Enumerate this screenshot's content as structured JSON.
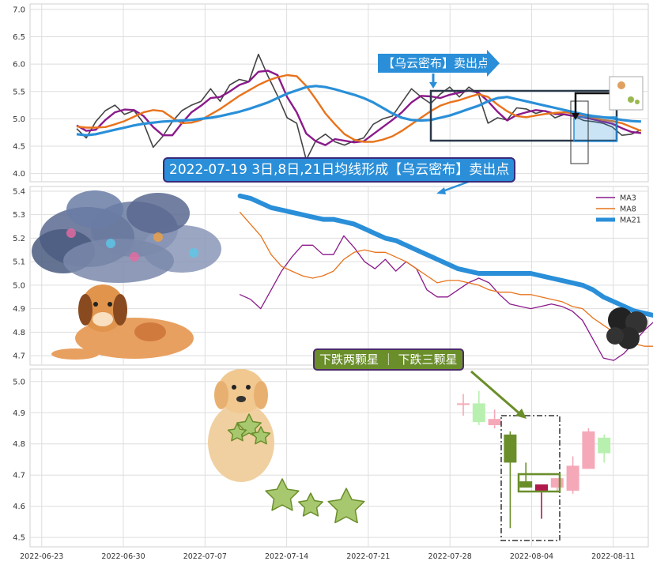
{
  "chart_data": {
    "type": "line",
    "x_tick_labels": [
      "2022-06-23",
      "2022-06-30",
      "2022-07-07",
      "2022-07-14",
      "2022-07-21",
      "2022-07-28",
      "2022-08-04",
      "2022-08-11"
    ],
    "panels": [
      {
        "id": "top",
        "type": "line",
        "ylim": [
          3.85,
          7.1
        ],
        "y_ticks": [
          "4.0",
          "4.5",
          "5.0",
          "5.5",
          "6.0",
          "6.5",
          "7.0"
        ],
        "x_start": "2022-06-26",
        "series": [
          {
            "name": "close",
            "color": "#444444",
            "values": [
              4.82,
              4.65,
              4.95,
              5.15,
              5.25,
              5.08,
              5.15,
              4.92,
              4.48,
              4.68,
              4.95,
              5.15,
              5.25,
              5.32,
              5.55,
              5.32,
              5.62,
              5.72,
              5.68,
              6.18,
              5.78,
              5.42,
              5.02,
              4.92,
              4.25,
              4.6,
              4.72,
              4.58,
              4.52,
              4.6,
              4.65,
              4.9,
              5.0,
              5.05,
              5.3,
              5.55,
              5.4,
              5.28,
              5.45,
              5.58,
              5.4,
              5.58,
              5.45,
              4.92,
              5.02,
              4.98,
              5.2,
              5.18,
              5.1,
              5.15,
              5.02,
              5.08,
              5.05,
              4.97,
              4.95,
              4.92,
              4.85,
              4.7,
              4.72,
              4.8
            ]
          },
          {
            "name": "MA3",
            "color": "#8b1a8b",
            "values": [
              4.88,
              4.78,
              4.8,
              4.98,
              5.12,
              5.17,
              5.16,
              5.05,
              4.85,
              4.7,
              4.7,
              4.92,
              5.12,
              5.24,
              5.38,
              5.4,
              5.5,
              5.62,
              5.68,
              5.86,
              5.88,
              5.8,
              5.4,
              5.12,
              4.73,
              4.59,
              4.52,
              4.63,
              4.6,
              4.57,
              4.59,
              4.72,
              4.85,
              4.98,
              5.12,
              5.3,
              5.42,
              5.41,
              5.38,
              5.44,
              5.48,
              5.52,
              5.48,
              5.32,
              5.13,
              4.97,
              5.07,
              5.12,
              5.16,
              5.14,
              5.09,
              5.08,
              5.05,
              5.03,
              4.99,
              4.95,
              4.91,
              4.83,
              4.76,
              4.74
            ]
          },
          {
            "name": "MA8",
            "color": "#e8731c",
            "values": [
              4.86,
              4.84,
              4.84,
              4.85,
              4.9,
              4.96,
              5.04,
              5.12,
              5.16,
              5.14,
              5.02,
              4.92,
              4.93,
              4.98,
              5.08,
              5.18,
              5.3,
              5.42,
              5.52,
              5.62,
              5.7,
              5.76,
              5.8,
              5.78,
              5.6,
              5.36,
              5.1,
              4.9,
              4.72,
              4.62,
              4.58,
              4.58,
              4.62,
              4.68,
              4.78,
              4.9,
              5.02,
              5.14,
              5.24,
              5.3,
              5.34,
              5.4,
              5.45,
              5.4,
              5.26,
              5.14,
              5.05,
              5.03,
              5.06,
              5.09,
              5.11,
              5.12,
              5.1,
              5.06,
              5.02,
              4.98,
              4.96,
              4.92,
              4.85,
              4.78
            ]
          },
          {
            "name": "MA21",
            "color": "#2a8fd8",
            "values": [
              4.72,
              4.7,
              4.72,
              4.76,
              4.8,
              4.84,
              4.88,
              4.91,
              4.93,
              4.95,
              4.96,
              4.97,
              4.98,
              5.0,
              5.02,
              5.05,
              5.09,
              5.13,
              5.18,
              5.24,
              5.3,
              5.38,
              5.46,
              5.52,
              5.58,
              5.6,
              5.58,
              5.54,
              5.49,
              5.44,
              5.38,
              5.3,
              5.2,
              5.1,
              5.02,
              4.98,
              4.97,
              4.98,
              5.02,
              5.06,
              5.12,
              5.18,
              5.24,
              5.32,
              5.38,
              5.4,
              5.36,
              5.32,
              5.28,
              5.24,
              5.2,
              5.16,
              5.12,
              5.08,
              5.05,
              5.03,
              5.01,
              4.98,
              4.96,
              4.95
            ]
          }
        ]
      },
      {
        "id": "middle",
        "type": "line",
        "ylim": [
          4.66,
          5.42
        ],
        "y_ticks": [
          "4.7",
          "4.8",
          "4.9",
          "5.0",
          "5.1",
          "5.2",
          "5.3",
          "5.4"
        ],
        "x_start": "2022-07-10",
        "legend": [
          "MA3",
          "MA8",
          "MA21"
        ],
        "legend_position": "upper-right",
        "series": [
          {
            "name": "MA3",
            "color": "#8b1a8b",
            "values": [
              4.96,
              4.94,
              4.9,
              4.98,
              5.06,
              5.12,
              5.17,
              5.17,
              5.13,
              5.13,
              5.21,
              5.16,
              5.1,
              5.07,
              5.11,
              5.06,
              5.1,
              5.07,
              4.98,
              4.95,
              4.95,
              4.98,
              5.01,
              5.03,
              5.01,
              4.96,
              4.92,
              4.91,
              4.9,
              4.91,
              4.92,
              4.91,
              4.89,
              4.85,
              4.77,
              4.69,
              4.68,
              4.71,
              4.76,
              4.81,
              4.85
            ]
          },
          {
            "name": "MA8",
            "color": "#e8731c",
            "values": [
              5.31,
              5.26,
              5.21,
              5.13,
              5.08,
              5.06,
              5.04,
              5.03,
              5.04,
              5.06,
              5.11,
              5.14,
              5.15,
              5.14,
              5.14,
              5.12,
              5.1,
              5.07,
              5.04,
              5.01,
              5.02,
              5.02,
              5.01,
              5.0,
              4.98,
              4.97,
              4.97,
              4.96,
              4.96,
              4.95,
              4.94,
              4.93,
              4.91,
              4.9,
              4.86,
              4.83,
              4.8,
              4.77,
              4.75,
              4.74,
              4.74
            ]
          },
          {
            "name": "MA21",
            "color": "#2a8fd8",
            "values": [
              5.38,
              5.37,
              5.35,
              5.33,
              5.32,
              5.31,
              5.3,
              5.29,
              5.28,
              5.28,
              5.27,
              5.26,
              5.24,
              5.22,
              5.2,
              5.19,
              5.17,
              5.15,
              5.13,
              5.11,
              5.09,
              5.07,
              5.06,
              5.05,
              5.05,
              5.05,
              5.05,
              5.05,
              5.05,
              5.04,
              5.03,
              5.02,
              5.01,
              5.0,
              4.98,
              4.95,
              4.93,
              4.91,
              4.89,
              4.88,
              4.87
            ]
          }
        ]
      },
      {
        "id": "bottom",
        "type": "candlestick",
        "ylim": [
          4.47,
          5.04
        ],
        "y_ticks": [
          "4.5",
          "4.6",
          "4.7",
          "4.8",
          "4.9",
          "5.0"
        ],
        "x_start": "2022-07-28",
        "candles": [
          {
            "open": 4.93,
            "close": 4.93,
            "high": 4.96,
            "low": 4.89,
            "color": "#f5a8b8"
          },
          {
            "open": 4.93,
            "close": 4.87,
            "high": 4.97,
            "low": 4.86,
            "color": "#b8f0b0"
          },
          {
            "open": 4.86,
            "close": 4.88,
            "high": 4.91,
            "low": 4.85,
            "color": "#f5a8b8"
          },
          {
            "open": 4.83,
            "close": 4.74,
            "high": 4.84,
            "low": 4.53,
            "color": "#6a8e2a"
          },
          {
            "open": 4.68,
            "close": 4.66,
            "high": 4.74,
            "low": 4.66,
            "color": "#6a8e2a"
          },
          {
            "open": 4.67,
            "close": 4.65,
            "high": 4.67,
            "low": 4.56,
            "color": "#b01a4a"
          },
          {
            "open": 4.66,
            "close": 4.69,
            "high": 4.69,
            "low": 4.65,
            "color": "#f5a8b8"
          },
          {
            "open": 4.65,
            "close": 4.73,
            "high": 4.76,
            "low": 4.64,
            "color": "#f5a8b8"
          },
          {
            "open": 4.72,
            "close": 4.84,
            "high": 4.85,
            "low": 4.72,
            "color": "#f5a8b8"
          },
          {
            "open": 4.82,
            "close": 4.77,
            "high": 4.83,
            "low": 4.74,
            "color": "#b8f0b0"
          }
        ]
      }
    ],
    "annotations": {
      "top_callout": "【乌云密布】卖出点",
      "main_callout": "2022-07-19 3日,8日,21日均线形成【乌云密布】卖出点",
      "pattern_callout": "下跌两颗星 ｜ 下跌三颗星"
    }
  }
}
